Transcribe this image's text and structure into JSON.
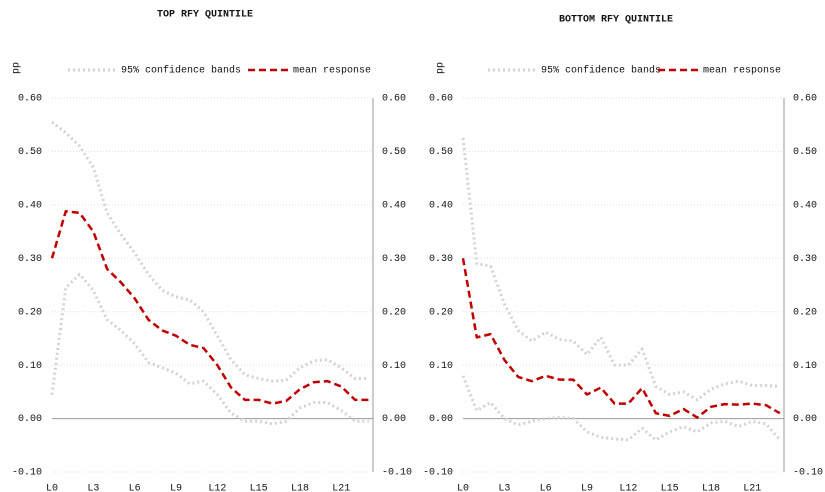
{
  "chart_data": [
    {
      "type": "line",
      "title": "TOP RFY QUINTILE",
      "ylabel": "pp",
      "categories": [
        "L0",
        null,
        null,
        "L3",
        null,
        null,
        "L6",
        null,
        null,
        "L9",
        null,
        null,
        "L12",
        null,
        null,
        "L15",
        null,
        null,
        "L18",
        null,
        null,
        "L21",
        null,
        null
      ],
      "series": [
        {
          "name": "95% confidence bands",
          "color": "#d3d3d3",
          "style": "dotted",
          "upper": [
            0.555,
            0.535,
            0.51,
            0.47,
            0.385,
            0.345,
            0.31,
            0.27,
            0.24,
            0.228,
            0.222,
            0.2,
            0.155,
            0.11,
            0.082,
            0.075,
            0.07,
            0.072,
            0.095,
            0.108,
            0.11,
            0.095,
            0.075,
            0.075
          ],
          "lower": [
            0.045,
            0.245,
            0.27,
            0.24,
            0.185,
            0.165,
            0.14,
            0.105,
            0.095,
            0.085,
            0.065,
            0.07,
            0.045,
            0.01,
            -0.005,
            -0.005,
            -0.01,
            -0.005,
            0.02,
            0.03,
            0.03,
            0.015,
            -0.005,
            -0.005
          ]
        },
        {
          "name": "mean response",
          "color": "#c00000",
          "style": "dashed",
          "values": [
            0.3,
            0.388,
            0.385,
            0.35,
            0.28,
            0.255,
            0.225,
            0.185,
            0.165,
            0.155,
            0.138,
            0.132,
            0.1,
            0.058,
            0.035,
            0.035,
            0.028,
            0.033,
            0.055,
            0.068,
            0.07,
            0.06,
            0.035,
            0.035
          ]
        }
      ],
      "ylim": [
        -0.1,
        0.6
      ],
      "yticks": [
        {
          "value": -0.1,
          "label": "-0.10"
        },
        {
          "value": 0,
          "label": "0.00"
        },
        {
          "value": 0.1,
          "label": "0.10"
        },
        {
          "value": 0.2,
          "label": "0.20"
        },
        {
          "value": 0.3,
          "label": "0.30"
        },
        {
          "value": 0.4,
          "label": "0.40"
        },
        {
          "value": 0.5,
          "label": "0.50"
        },
        {
          "value": 0.6,
          "label": "0.60"
        }
      ],
      "grid": true
    },
    {
      "type": "line",
      "title": "BOTTOM RFY QUINTILE",
      "ylabel": "pp",
      "categories": [
        "L0",
        null,
        null,
        "L3",
        null,
        null,
        "L6",
        null,
        null,
        "L9",
        null,
        null,
        "L12",
        null,
        null,
        "L15",
        null,
        null,
        "L18",
        null,
        null,
        "L21",
        null,
        null
      ],
      "series": [
        {
          "name": "95% confidence bands",
          "color": "#d3d3d3",
          "style": "dotted",
          "upper": [
            0.525,
            0.29,
            0.285,
            0.215,
            0.165,
            0.145,
            0.162,
            0.148,
            0.145,
            0.12,
            0.152,
            0.1,
            0.1,
            0.13,
            0.06,
            0.045,
            0.05,
            0.035,
            0.055,
            0.065,
            0.07,
            0.062,
            0.062,
            0.06
          ],
          "lower": [
            0.08,
            0.015,
            0.03,
            0.0,
            -0.012,
            -0.005,
            0.0,
            0.002,
            0.0,
            -0.025,
            -0.035,
            -0.038,
            -0.04,
            -0.018,
            -0.04,
            -0.025,
            -0.015,
            -0.025,
            -0.008,
            -0.005,
            -0.015,
            -0.005,
            -0.01,
            -0.04
          ]
        },
        {
          "name": "mean response",
          "color": "#c00000",
          "style": "dashed",
          "values": [
            0.3,
            0.152,
            0.158,
            0.11,
            0.078,
            0.07,
            0.08,
            0.073,
            0.073,
            0.045,
            0.058,
            0.028,
            0.028,
            0.057,
            0.01,
            0.005,
            0.018,
            0.002,
            0.022,
            0.027,
            0.026,
            0.028,
            0.025,
            0.01
          ]
        }
      ],
      "ylim": [
        -0.1,
        0.6
      ],
      "yticks": [
        {
          "value": -0.1,
          "label": "-0.10"
        },
        {
          "value": 0,
          "label": "0.00"
        },
        {
          "value": 0.1,
          "label": "0.10"
        },
        {
          "value": 0.2,
          "label": "0.20"
        },
        {
          "value": 0.3,
          "label": "0.30"
        },
        {
          "value": 0.4,
          "label": "0.40"
        },
        {
          "value": 0.5,
          "label": "0.50"
        },
        {
          "value": 0.6,
          "label": "0.60"
        }
      ],
      "grid": true
    }
  ]
}
